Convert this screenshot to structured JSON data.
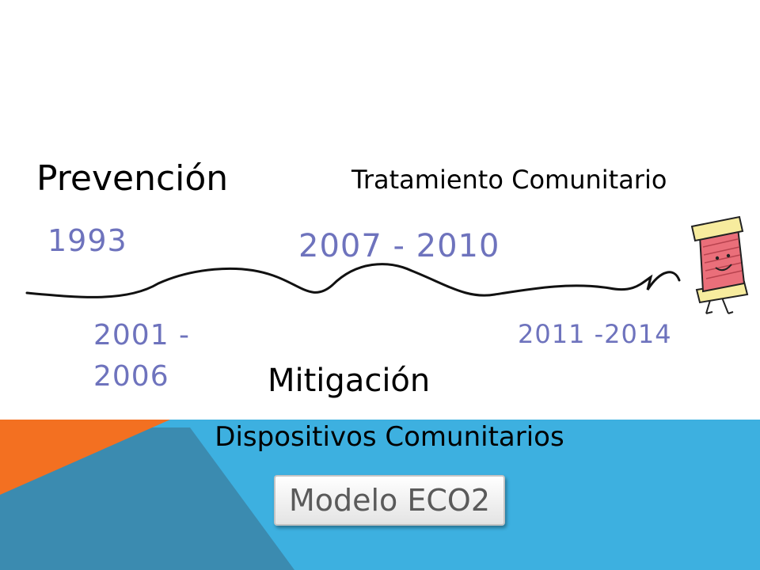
{
  "slide": {
    "phases": {
      "prevencion": "Prevención",
      "tratamiento": "Tratamiento Comunitario",
      "mitigacion": "Mitigación"
    },
    "years": {
      "y1993": "1993",
      "y2001": "2001 - 2006",
      "y2007": "2007 -  2010",
      "y2011": "2011 -2014"
    },
    "subtitle": "Dispositivos Comunitarios",
    "button_label": "Modelo ECO2"
  },
  "colors": {
    "year_text": "#6e73bd",
    "footer_blue": "#3db0e0",
    "footer_orange": "#f37021",
    "footer_steel": "#3b8bb0",
    "spool_body": "#ea6f7a",
    "spool_caps": "#f7ec9e"
  },
  "icons": {
    "timeline": "wavy-thread-line",
    "character": "thread-spool-character-icon"
  }
}
